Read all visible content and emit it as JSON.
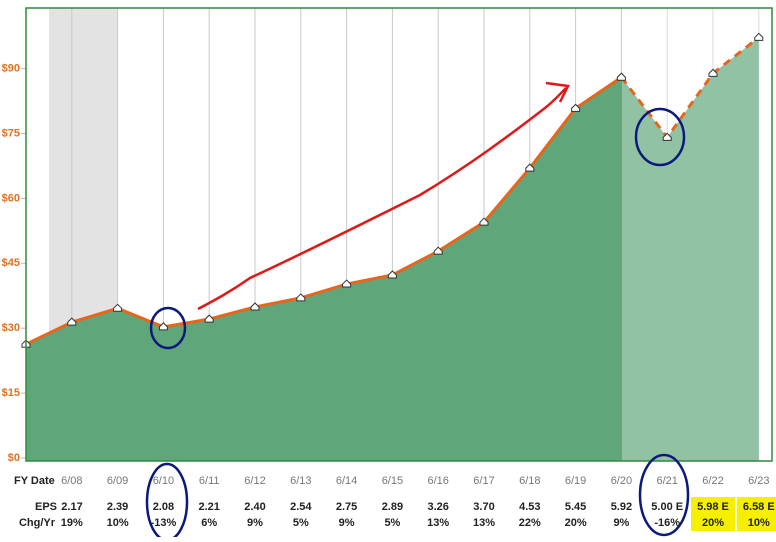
{
  "chart_data": {
    "type": "area",
    "categories": [
      null,
      "6/08",
      "6/09",
      "6/10",
      "6/11",
      "6/12",
      "6/13",
      "6/14",
      "6/15",
      "6/16",
      "6/17",
      "6/18",
      "6/19",
      "6/20",
      "6/21",
      "6/22",
      "6/23"
    ],
    "values": [
      26.3,
      31.4,
      34.6,
      30.3,
      32.1,
      34.9,
      37.0,
      40.2,
      42.3,
      47.8,
      54.5,
      67.0,
      80.8,
      88.0,
      74.1,
      88.9,
      97.2
    ],
    "color": "#5fa67a",
    "line_color": "#e8651c",
    "forecast_start": 13,
    "ylim": [
      0,
      104
    ],
    "yticks": [
      {
        "value": 0,
        "label": "$0"
      },
      {
        "value": 15,
        "label": "$15"
      },
      {
        "value": 30,
        "label": "$30"
      },
      {
        "value": 45,
        "label": "$45"
      },
      {
        "value": 60,
        "label": "$60"
      },
      {
        "value": 75,
        "label": "$75"
      },
      {
        "value": 90,
        "label": "$90"
      }
    ],
    "x_row_label": "FY Date",
    "rows": [
      {
        "label": "EPS",
        "cells": [
          "2.17",
          "2.39",
          "2.08",
          "2.21",
          "2.40",
          "2.54",
          "2.75",
          "2.89",
          "3.26",
          "3.70",
          "4.53",
          "5.45",
          "5.92",
          "5.00 E",
          "5.98 E",
          "6.58 E"
        ]
      },
      {
        "label": "Chg/Yr",
        "cells": [
          "19%",
          "10%",
          "-13%",
          "6%",
          "9%",
          "5%",
          "9%",
          "5%",
          "13%",
          "13%",
          "22%",
          "20%",
          "9%",
          "-16%",
          "20%",
          "10%"
        ]
      }
    ],
    "highlight_columns": [
      14,
      15
    ]
  }
}
